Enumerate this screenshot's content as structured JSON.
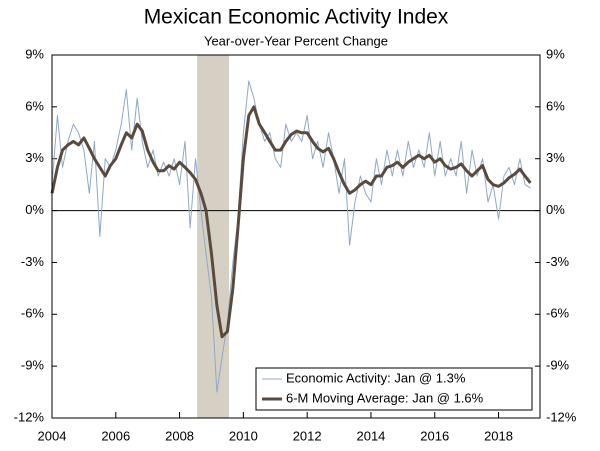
{
  "chart_data": {
    "type": "line",
    "title": "Mexican Economic Activity Index",
    "subtitle": "Year-over-Year Percent Change",
    "x": [
      2004.0,
      2004.17,
      2004.33,
      2004.5,
      2004.67,
      2004.83,
      2005.0,
      2005.17,
      2005.33,
      2005.5,
      2005.67,
      2005.83,
      2006.0,
      2006.17,
      2006.33,
      2006.5,
      2006.67,
      2006.83,
      2007.0,
      2007.17,
      2007.33,
      2007.5,
      2007.67,
      2007.83,
      2008.0,
      2008.17,
      2008.33,
      2008.5,
      2008.67,
      2008.83,
      2009.0,
      2009.17,
      2009.33,
      2009.5,
      2009.67,
      2009.83,
      2010.0,
      2010.17,
      2010.33,
      2010.5,
      2010.67,
      2010.83,
      2011.0,
      2011.17,
      2011.33,
      2011.5,
      2011.67,
      2011.83,
      2012.0,
      2012.17,
      2012.33,
      2012.5,
      2012.67,
      2012.83,
      2013.0,
      2013.17,
      2013.33,
      2013.5,
      2013.67,
      2013.83,
      2014.0,
      2014.17,
      2014.33,
      2014.5,
      2014.67,
      2014.83,
      2015.0,
      2015.17,
      2015.33,
      2015.5,
      2015.67,
      2015.83,
      2016.0,
      2016.17,
      2016.33,
      2016.5,
      2016.67,
      2016.83,
      2017.0,
      2017.17,
      2017.33,
      2017.5,
      2017.67,
      2017.83,
      2018.0,
      2018.17,
      2018.33,
      2018.5,
      2018.67,
      2018.83,
      2019.0
    ],
    "series": [
      {
        "name": "Economic Activity: Jan @ 1.3%",
        "color": "#8fa8c8",
        "width": 1,
        "values": [
          1.5,
          5.5,
          2.5,
          4.0,
          5.0,
          4.5,
          3.5,
          1.0,
          4.0,
          -1.5,
          3.0,
          2.5,
          3.5,
          5.0,
          7.0,
          3.5,
          6.5,
          4.0,
          2.5,
          3.5,
          2.0,
          2.8,
          2.0,
          3.0,
          1.5,
          4.0,
          -1.0,
          3.0,
          0.0,
          -2.5,
          -5.0,
          -10.5,
          -8.5,
          -6.5,
          -3.0,
          -0.5,
          4.5,
          7.5,
          6.5,
          5.0,
          4.0,
          4.5,
          3.0,
          2.5,
          5.0,
          4.0,
          4.5,
          4.0,
          5.5,
          3.0,
          4.0,
          2.5,
          4.5,
          3.0,
          1.0,
          3.0,
          -2.0,
          0.5,
          2.0,
          1.0,
          0.5,
          3.0,
          1.5,
          3.5,
          2.0,
          3.5,
          2.0,
          4.0,
          2.5,
          3.5,
          2.5,
          4.5,
          2.0,
          4.0,
          2.0,
          3.0,
          2.0,
          4.0,
          1.0,
          3.5,
          2.0,
          3.0,
          0.5,
          1.5,
          -0.5,
          2.0,
          2.5,
          1.5,
          3.0,
          1.5,
          1.3
        ]
      },
      {
        "name": "6-M Moving Average: Jan @ 1.6%",
        "color": "#5a4a3e",
        "width": 3,
        "values": [
          1.0,
          2.5,
          3.5,
          3.8,
          4.0,
          3.8,
          4.2,
          3.6,
          3.0,
          2.5,
          2.0,
          2.6,
          3.0,
          3.8,
          4.5,
          4.2,
          5.0,
          4.6,
          3.5,
          2.8,
          2.3,
          2.3,
          2.6,
          2.4,
          2.8,
          2.5,
          2.2,
          1.8,
          1.0,
          0.0,
          -2.5,
          -5.5,
          -7.3,
          -7.0,
          -4.5,
          -1.0,
          3.0,
          5.5,
          6.0,
          5.0,
          4.5,
          4.0,
          3.5,
          3.5,
          4.0,
          4.4,
          4.6,
          4.5,
          4.5,
          4.0,
          3.6,
          3.4,
          3.6,
          3.0,
          2.2,
          1.5,
          1.0,
          1.2,
          1.5,
          1.7,
          1.5,
          2.0,
          2.0,
          2.5,
          2.6,
          2.8,
          2.5,
          2.8,
          3.0,
          3.2,
          3.0,
          3.2,
          2.8,
          3.0,
          2.6,
          2.4,
          2.5,
          2.7,
          2.3,
          2.0,
          2.3,
          2.6,
          1.8,
          1.5,
          1.4,
          1.6,
          1.9,
          2.1,
          2.4,
          2.0,
          1.6
        ]
      }
    ],
    "recession": [
      2008.55,
      2009.55
    ],
    "recession_color": "#d6d0c4",
    "xlim": [
      2004,
      2019.3
    ],
    "xticks": [
      2004,
      2006,
      2008,
      2010,
      2012,
      2014,
      2016,
      2018
    ],
    "ylim": [
      -12,
      9
    ],
    "yticks": [
      {
        "value": -12,
        "label": "-12%"
      },
      {
        "value": -9,
        "label": "-9%"
      },
      {
        "value": -6,
        "label": "-6%"
      },
      {
        "value": -3,
        "label": "-3%"
      },
      {
        "value": 0,
        "label": "0%"
      },
      {
        "value": 3,
        "label": "3%"
      },
      {
        "value": 6,
        "label": "6%"
      },
      {
        "value": 9,
        "label": "9%"
      }
    ],
    "y2lim": [
      -12,
      9
    ],
    "y2ticks": [
      {
        "value": -12,
        "label": "-12%"
      },
      {
        "value": -9,
        "label": "-9%"
      },
      {
        "value": -6,
        "label": "-6%"
      },
      {
        "value": -3,
        "label": "-3%"
      },
      {
        "value": 0,
        "label": "0%"
      },
      {
        "value": 3,
        "label": "3%"
      },
      {
        "value": 6,
        "label": "6%"
      },
      {
        "value": 9,
        "label": "9%"
      }
    ],
    "legend": "lower-right"
  }
}
